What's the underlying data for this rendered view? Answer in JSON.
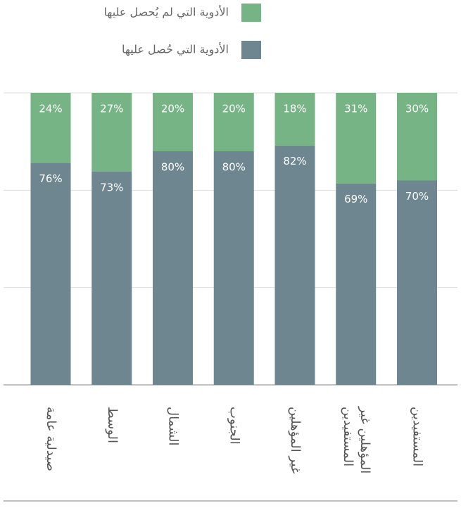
{
  "chart_data": {
    "type": "stacked_bar",
    "categories": [
      "صيدلية عامة",
      "الوسط",
      "الشمال",
      "الجنوب",
      "غير المؤهلين",
      "المؤهلين غير المستفيدين",
      "المستفيدين"
    ],
    "series": [
      {
        "name": "الأدوية التي لم يُحصل عليها",
        "color": "#76b385",
        "values": [
          24,
          27,
          20,
          20,
          18,
          31,
          30
        ],
        "value_labels": [
          "24%",
          "27%",
          "20%",
          "20%",
          "18%",
          "31%",
          "30%"
        ]
      },
      {
        "name": "الأدوية التي حُصل عليها",
        "color": "#6d8690",
        "values": [
          76,
          73,
          80,
          80,
          82,
          69,
          70
        ],
        "value_labels": [
          "76%",
          "73%",
          "80%",
          "80%",
          "82%",
          "69%",
          "70%"
        ]
      }
    ],
    "ylim": [
      0,
      100
    ],
    "yticks": [
      0,
      33.33,
      66.67,
      100
    ],
    "grid": true
  }
}
